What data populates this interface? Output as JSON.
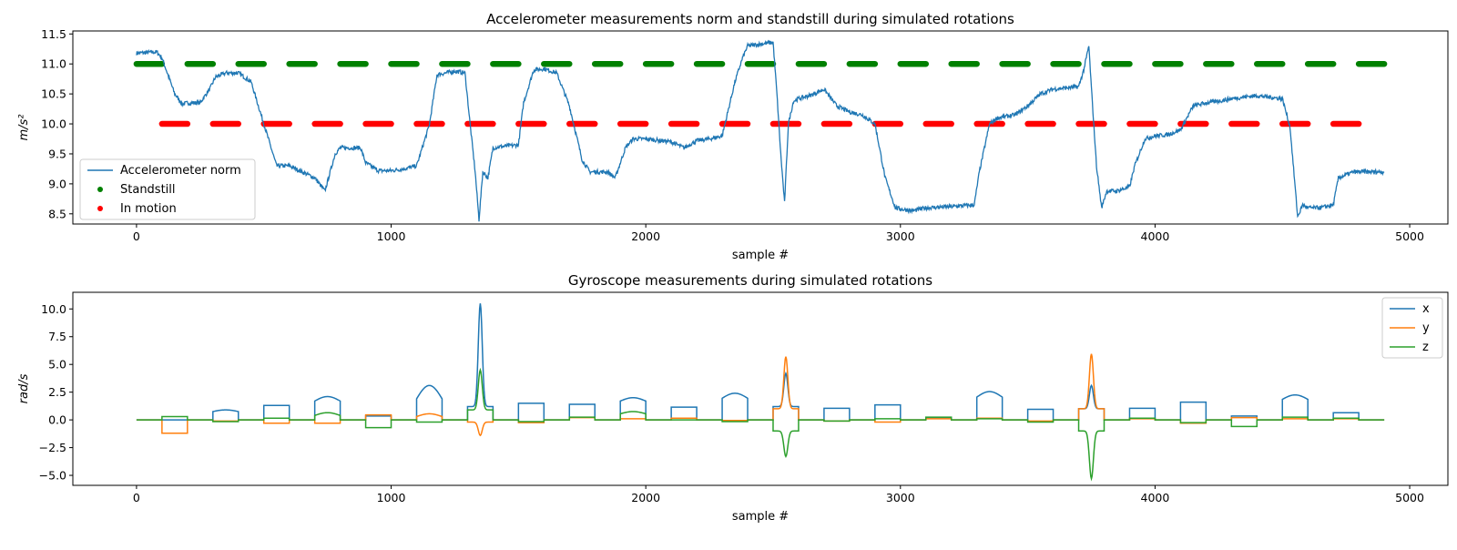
{
  "charts": [
    {
      "title": "Accelerometer measurements norm and standstill during simulated rotations",
      "xlabel": "sample #",
      "ylabel": "m/s²",
      "xticks": [
        "0",
        "1000",
        "2000",
        "3000",
        "4000",
        "5000"
      ],
      "yticks": [
        "8.5",
        "9.0",
        "9.5",
        "10.0",
        "10.5",
        "11.0",
        "11.5"
      ],
      "legend": [
        "Accelerometer norm",
        "Standstill",
        "In motion"
      ]
    },
    {
      "title": "Gyroscope measurements during simulated rotations",
      "xlabel": "sample #",
      "ylabel": "rad/s",
      "xticks": [
        "0",
        "1000",
        "2000",
        "3000",
        "4000",
        "5000"
      ],
      "yticks": [
        "−5.0",
        "−2.5",
        "0.0",
        "2.5",
        "5.0",
        "7.5",
        "10.0"
      ],
      "legend": [
        "x",
        "y",
        "z"
      ]
    }
  ],
  "chart_data": [
    {
      "type": "line",
      "title": "Accelerometer measurements norm and standstill during simulated rotations",
      "xlabel": "sample #",
      "ylabel": "m/s²",
      "xlim": [
        -250,
        5150
      ],
      "ylim": [
        8.33,
        11.55
      ],
      "grid": false,
      "legend_position": "lower-left",
      "series": [
        {
          "name": "Accelerometer norm",
          "kind": "line",
          "color": "#1f77b4",
          "x": [
            0,
            80,
            100,
            150,
            180,
            200,
            250,
            290,
            310,
            350,
            400,
            450,
            500,
            550,
            600,
            700,
            740,
            780,
            800,
            880,
            900,
            950,
            1000,
            1050,
            1100,
            1150,
            1180,
            1250,
            1290,
            1310,
            1330,
            1345,
            1360,
            1380,
            1400,
            1430,
            1500,
            1520,
            1560,
            1600,
            1650,
            1700,
            1750,
            1780,
            1850,
            1880,
            1920,
            1950,
            2000,
            2100,
            2150,
            2200,
            2250,
            2300,
            2350,
            2380,
            2400,
            2450,
            2500,
            2515,
            2530,
            2545,
            2560,
            2580,
            2600,
            2650,
            2700,
            2750,
            2800,
            2850,
            2900,
            2940,
            2980,
            3000,
            3050,
            3100,
            3200,
            3290,
            3310,
            3350,
            3380,
            3450,
            3500,
            3550,
            3600,
            3650,
            3700,
            3720,
            3740,
            3750,
            3770,
            3790,
            3810,
            3850,
            3900,
            3920,
            3960,
            4000,
            4050,
            4100,
            4150,
            4200,
            4250,
            4300,
            4350,
            4400,
            4500,
            4530,
            4560,
            4580,
            4600,
            4650,
            4700,
            4720,
            4780,
            4900
          ],
          "y": [
            11.18,
            11.2,
            11.1,
            10.5,
            10.33,
            10.35,
            10.35,
            10.6,
            10.78,
            10.85,
            10.85,
            10.7,
            10.0,
            9.3,
            9.3,
            9.1,
            8.88,
            9.5,
            9.6,
            9.6,
            9.35,
            9.22,
            9.22,
            9.25,
            9.3,
            9.98,
            10.82,
            10.88,
            10.85,
            10.0,
            9.2,
            8.4,
            9.2,
            9.1,
            9.6,
            9.62,
            9.65,
            10.35,
            10.9,
            10.92,
            10.85,
            10.3,
            9.4,
            9.2,
            9.2,
            9.1,
            9.6,
            9.75,
            9.75,
            9.7,
            9.6,
            9.72,
            9.75,
            9.8,
            10.7,
            11.1,
            11.3,
            11.33,
            11.36,
            10.5,
            9.5,
            8.68,
            10.0,
            10.38,
            10.42,
            10.48,
            10.58,
            10.3,
            10.2,
            10.15,
            10.0,
            9.1,
            8.6,
            8.58,
            8.55,
            8.6,
            8.62,
            8.65,
            9.2,
            10.0,
            10.1,
            10.15,
            10.3,
            10.5,
            10.58,
            10.6,
            10.62,
            10.9,
            11.3,
            10.6,
            9.3,
            8.6,
            8.88,
            8.88,
            8.95,
            9.3,
            9.75,
            9.8,
            9.82,
            9.9,
            10.3,
            10.35,
            10.38,
            10.42,
            10.45,
            10.47,
            10.42,
            9.95,
            8.45,
            8.65,
            8.6,
            8.6,
            8.65,
            9.1,
            9.2,
            9.2
          ]
        },
        {
          "name": "Standstill",
          "kind": "segments",
          "color": "#008000",
          "y": 11.0,
          "segments": [
            [
              0,
              100
            ],
            [
              200,
              300
            ],
            [
              400,
              500
            ],
            [
              600,
              700
            ],
            [
              800,
              900
            ],
            [
              1000,
              1100
            ],
            [
              1200,
              1300
            ],
            [
              1400,
              1500
            ],
            [
              1600,
              1700
            ],
            [
              1800,
              1900
            ],
            [
              2000,
              2100
            ],
            [
              2200,
              2300
            ],
            [
              2400,
              2500
            ],
            [
              2600,
              2700
            ],
            [
              2800,
              2900
            ],
            [
              3000,
              3100
            ],
            [
              3200,
              3300
            ],
            [
              3400,
              3500
            ],
            [
              3600,
              3700
            ],
            [
              3800,
              3900
            ],
            [
              4000,
              4100
            ],
            [
              4200,
              4300
            ],
            [
              4400,
              4500
            ],
            [
              4600,
              4700
            ],
            [
              4800,
              4900
            ]
          ]
        },
        {
          "name": "In motion",
          "kind": "segments",
          "color": "#ff0000",
          "y": 10.0,
          "segments": [
            [
              100,
              200
            ],
            [
              300,
              400
            ],
            [
              500,
              600
            ],
            [
              700,
              800
            ],
            [
              900,
              1000
            ],
            [
              1100,
              1200
            ],
            [
              1300,
              1400
            ],
            [
              1500,
              1600
            ],
            [
              1700,
              1800
            ],
            [
              1900,
              2000
            ],
            [
              2100,
              2200
            ],
            [
              2300,
              2400
            ],
            [
              2500,
              2600
            ],
            [
              2700,
              2800
            ],
            [
              2900,
              3000
            ],
            [
              3100,
              3200
            ],
            [
              3300,
              3400
            ],
            [
              3500,
              3600
            ],
            [
              3700,
              3800
            ],
            [
              3900,
              4000
            ],
            [
              4100,
              4200
            ],
            [
              4300,
              4400
            ],
            [
              4500,
              4600
            ],
            [
              4700,
              4800
            ]
          ]
        }
      ]
    },
    {
      "type": "line",
      "title": "Gyroscope measurements during simulated rotations",
      "xlabel": "sample #",
      "ylabel": "rad/s",
      "xlim": [
        -250,
        5150
      ],
      "ylim": [
        -5.9,
        11.5
      ],
      "grid": false,
      "legend_position": "upper-right",
      "intervals": [
        [
          100,
          200
        ],
        [
          300,
          400
        ],
        [
          500,
          600
        ],
        [
          700,
          800
        ],
        [
          900,
          1000
        ],
        [
          1100,
          1200
        ],
        [
          1300,
          1400
        ],
        [
          1500,
          1600
        ],
        [
          1700,
          1800
        ],
        [
          1900,
          2000
        ],
        [
          2100,
          2200
        ],
        [
          2300,
          2400
        ],
        [
          2500,
          2600
        ],
        [
          2700,
          2800
        ],
        [
          2900,
          3000
        ],
        [
          3100,
          3200
        ],
        [
          3300,
          3400
        ],
        [
          3500,
          3600
        ],
        [
          3700,
          3800
        ],
        [
          3900,
          4000
        ],
        [
          4100,
          4200
        ],
        [
          4300,
          4400
        ],
        [
          4500,
          4600
        ],
        [
          4700,
          4800
        ]
      ],
      "series": [
        {
          "name": "x",
          "color": "#1f77b4",
          "shape": [
            "flat",
            "arch",
            "flat",
            "arch",
            "flat",
            "arch",
            "peak",
            "flat",
            "flat",
            "arch",
            "flat",
            "arch",
            "peak",
            "flat",
            "flat",
            "flat",
            "arch",
            "flat",
            "peak",
            "flat",
            "flat",
            "flat",
            "arch",
            "flat"
          ],
          "edge": [
            0.0,
            0.75,
            1.3,
            1.7,
            0.35,
            1.9,
            1.2,
            1.5,
            1.4,
            1.7,
            1.15,
            1.95,
            1.2,
            1.05,
            1.35,
            0.2,
            2.05,
            0.95,
            1.0,
            1.05,
            1.6,
            0.35,
            1.85,
            0.65
          ],
          "peak": [
            0.0,
            0.9,
            1.3,
            2.1,
            0.35,
            3.1,
            10.5,
            1.6,
            1.4,
            2.0,
            1.2,
            2.4,
            4.2,
            1.1,
            1.35,
            0.2,
            2.55,
            1.1,
            3.1,
            1.15,
            1.6,
            0.35,
            2.25,
            0.7
          ]
        },
        {
          "name": "y",
          "color": "#ff7f0e",
          "shape": [
            "flat",
            "flat",
            "flat",
            "flat",
            "flat",
            "arch",
            "peak",
            "flat",
            "flat",
            "flat",
            "flat",
            "flat",
            "peak",
            "flat",
            "flat",
            "flat",
            "flat",
            "flat",
            "peak",
            "flat",
            "flat",
            "flat",
            "flat",
            "flat"
          ],
          "edge": [
            -1.2,
            -0.1,
            -0.3,
            -0.3,
            0.45,
            0.3,
            -0.2,
            -0.25,
            0.2,
            0.1,
            0.15,
            -0.05,
            1.0,
            -0.1,
            -0.2,
            0.1,
            0.15,
            -0.1,
            1.0,
            0.1,
            -0.3,
            0.2,
            0.1,
            0.1
          ],
          "peak": [
            -1.2,
            -0.1,
            -0.3,
            -0.3,
            0.45,
            0.55,
            -1.4,
            -0.25,
            0.2,
            0.1,
            0.15,
            -0.05,
            5.7,
            -0.1,
            -0.2,
            0.1,
            0.15,
            -0.1,
            5.95,
            0.1,
            -0.3,
            0.2,
            0.1,
            0.1
          ]
        },
        {
          "name": "z",
          "color": "#2ca02c",
          "shape": [
            "flat",
            "flat",
            "flat",
            "arch",
            "flat",
            "flat",
            "peak",
            "flat",
            "flat",
            "arch",
            "flat",
            "flat",
            "peak",
            "flat",
            "flat",
            "flat",
            "flat",
            "flat",
            "peak",
            "flat",
            "flat",
            "flat",
            "flat",
            "flat"
          ],
          "edge": [
            0.3,
            -0.15,
            0.15,
            0.4,
            -0.7,
            -0.2,
            0.9,
            -0.15,
            0.25,
            0.55,
            0.0,
            -0.15,
            -1.0,
            -0.1,
            0.1,
            0.25,
            0.1,
            -0.2,
            -1.0,
            0.15,
            -0.25,
            -0.6,
            0.25,
            0.15
          ],
          "peak": [
            0.3,
            -0.15,
            0.15,
            0.65,
            -0.7,
            -0.2,
            4.5,
            -0.15,
            0.25,
            0.75,
            0.0,
            -0.15,
            -3.3,
            -0.1,
            0.1,
            0.25,
            0.1,
            -0.2,
            -5.3,
            0.15,
            -0.25,
            -0.6,
            0.25,
            0.15
          ]
        }
      ]
    }
  ]
}
